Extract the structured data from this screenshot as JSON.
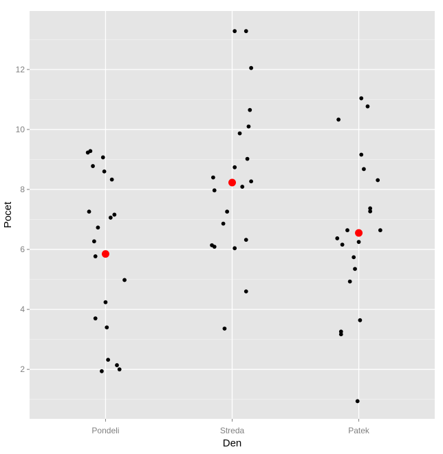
{
  "chart_data": {
    "type": "scatter",
    "title": "",
    "xlabel": "Den",
    "ylabel": "Pocet",
    "categories": [
      "Pondeli",
      "Streda",
      "Patek"
    ],
    "y_ticks": [
      2,
      4,
      6,
      8,
      10,
      12
    ],
    "ylim": [
      0.35,
      13.95
    ],
    "grid": true,
    "legend": "none",
    "colors": {
      "panel": "#e5e5e5",
      "grid_major": "#ffffff",
      "grid_minor": "#f2f2f2",
      "points": "#000000",
      "means": "#ff0000"
    },
    "series": [
      {
        "role": "observations",
        "points": [
          {
            "category": "Pondeli",
            "jitter": -0.14,
            "y": 9.23
          },
          {
            "category": "Pondeli",
            "jitter": -0.12,
            "y": 9.28
          },
          {
            "category": "Pondeli",
            "jitter": -0.02,
            "y": 9.07
          },
          {
            "category": "Pondeli",
            "jitter": -0.1,
            "y": 8.78
          },
          {
            "category": "Pondeli",
            "jitter": -0.01,
            "y": 8.6
          },
          {
            "category": "Pondeli",
            "jitter": 0.05,
            "y": 8.33
          },
          {
            "category": "Pondeli",
            "jitter": -0.13,
            "y": 7.26
          },
          {
            "category": "Pondeli",
            "jitter": 0.07,
            "y": 7.16
          },
          {
            "category": "Pondeli",
            "jitter": 0.04,
            "y": 7.06
          },
          {
            "category": "Pondeli",
            "jitter": -0.06,
            "y": 6.73
          },
          {
            "category": "Pondeli",
            "jitter": -0.09,
            "y": 6.27
          },
          {
            "category": "Pondeli",
            "jitter": -0.08,
            "y": 5.77
          },
          {
            "category": "Pondeli",
            "jitter": 0.15,
            "y": 4.98
          },
          {
            "category": "Pondeli",
            "jitter": 0.0,
            "y": 4.24
          },
          {
            "category": "Pondeli",
            "jitter": -0.08,
            "y": 3.7
          },
          {
            "category": "Pondeli",
            "jitter": 0.01,
            "y": 3.4
          },
          {
            "category": "Pondeli",
            "jitter": 0.02,
            "y": 2.32
          },
          {
            "category": "Pondeli",
            "jitter": 0.09,
            "y": 2.14
          },
          {
            "category": "Pondeli",
            "jitter": 0.11,
            "y": 2.0
          },
          {
            "category": "Pondeli",
            "jitter": -0.03,
            "y": 1.94
          },
          {
            "category": "Streda",
            "jitter": 0.02,
            "y": 13.28
          },
          {
            "category": "Streda",
            "jitter": 0.11,
            "y": 13.28
          },
          {
            "category": "Streda",
            "jitter": 0.15,
            "y": 12.05
          },
          {
            "category": "Streda",
            "jitter": 0.14,
            "y": 10.65
          },
          {
            "category": "Streda",
            "jitter": 0.13,
            "y": 10.1
          },
          {
            "category": "Streda",
            "jitter": 0.06,
            "y": 9.87
          },
          {
            "category": "Streda",
            "jitter": 0.12,
            "y": 9.02
          },
          {
            "category": "Streda",
            "jitter": 0.02,
            "y": 8.74
          },
          {
            "category": "Streda",
            "jitter": -0.15,
            "y": 8.4
          },
          {
            "category": "Streda",
            "jitter": 0.15,
            "y": 8.27
          },
          {
            "category": "Streda",
            "jitter": 0.08,
            "y": 8.09
          },
          {
            "category": "Streda",
            "jitter": -0.14,
            "y": 7.97
          },
          {
            "category": "Streda",
            "jitter": -0.04,
            "y": 7.26
          },
          {
            "category": "Streda",
            "jitter": -0.07,
            "y": 6.86
          },
          {
            "category": "Streda",
            "jitter": 0.11,
            "y": 6.32
          },
          {
            "category": "Streda",
            "jitter": -0.16,
            "y": 6.14
          },
          {
            "category": "Streda",
            "jitter": -0.14,
            "y": 6.09
          },
          {
            "category": "Streda",
            "jitter": 0.02,
            "y": 6.04
          },
          {
            "category": "Streda",
            "jitter": 0.11,
            "y": 4.6
          },
          {
            "category": "Streda",
            "jitter": -0.06,
            "y": 3.36
          },
          {
            "category": "Patek",
            "jitter": -0.16,
            "y": 10.33
          },
          {
            "category": "Patek",
            "jitter": 0.02,
            "y": 11.04
          },
          {
            "category": "Patek",
            "jitter": 0.07,
            "y": 10.77
          },
          {
            "category": "Patek",
            "jitter": 0.02,
            "y": 9.16
          },
          {
            "category": "Patek",
            "jitter": 0.04,
            "y": 8.68
          },
          {
            "category": "Patek",
            "jitter": 0.15,
            "y": 8.31
          },
          {
            "category": "Patek",
            "jitter": 0.09,
            "y": 7.37
          },
          {
            "category": "Patek",
            "jitter": 0.09,
            "y": 7.27
          },
          {
            "category": "Patek",
            "jitter": -0.09,
            "y": 6.64
          },
          {
            "category": "Patek",
            "jitter": 0.17,
            "y": 6.64
          },
          {
            "category": "Patek",
            "jitter": -0.17,
            "y": 6.37
          },
          {
            "category": "Patek",
            "jitter": 0.0,
            "y": 6.25
          },
          {
            "category": "Patek",
            "jitter": -0.13,
            "y": 6.16
          },
          {
            "category": "Patek",
            "jitter": -0.04,
            "y": 5.74
          },
          {
            "category": "Patek",
            "jitter": -0.03,
            "y": 5.35
          },
          {
            "category": "Patek",
            "jitter": -0.07,
            "y": 4.93
          },
          {
            "category": "Patek",
            "jitter": 0.01,
            "y": 3.64
          },
          {
            "category": "Patek",
            "jitter": -0.14,
            "y": 3.26
          },
          {
            "category": "Patek",
            "jitter": -0.14,
            "y": 3.17
          },
          {
            "category": "Patek",
            "jitter": -0.01,
            "y": 0.94
          }
        ]
      },
      {
        "role": "means",
        "points": [
          {
            "category": "Pondeli",
            "jitter": 0,
            "y": 5.85
          },
          {
            "category": "Streda",
            "jitter": 0,
            "y": 8.23
          },
          {
            "category": "Patek",
            "jitter": 0,
            "y": 6.55
          }
        ]
      }
    ]
  }
}
